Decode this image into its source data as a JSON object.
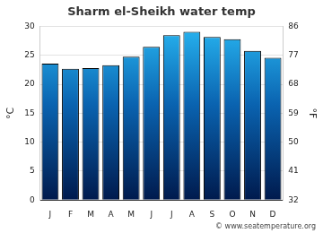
{
  "chart_data": {
    "type": "bar",
    "title": "Sharm el-Sheikh water temp",
    "categories": [
      "J",
      "F",
      "M",
      "A",
      "M",
      "J",
      "J",
      "A",
      "S",
      "O",
      "N",
      "D"
    ],
    "values": [
      23.6,
      22.7,
      22.8,
      23.3,
      24.8,
      26.5,
      28.5,
      29.1,
      28.2,
      27.8,
      25.8,
      24.6
    ],
    "color": "#27b4f0",
    "ylabel": "°C",
    "y2label": "°F",
    "ylim": [
      0,
      30
    ],
    "yticks": [
      0,
      5,
      10,
      15,
      20,
      25,
      30
    ],
    "y2lim": [
      32,
      86
    ],
    "y2ticks": [
      32,
      41,
      50,
      59,
      68,
      77,
      86
    ],
    "grid": true,
    "footer": "© www.seatemperature.org"
  }
}
